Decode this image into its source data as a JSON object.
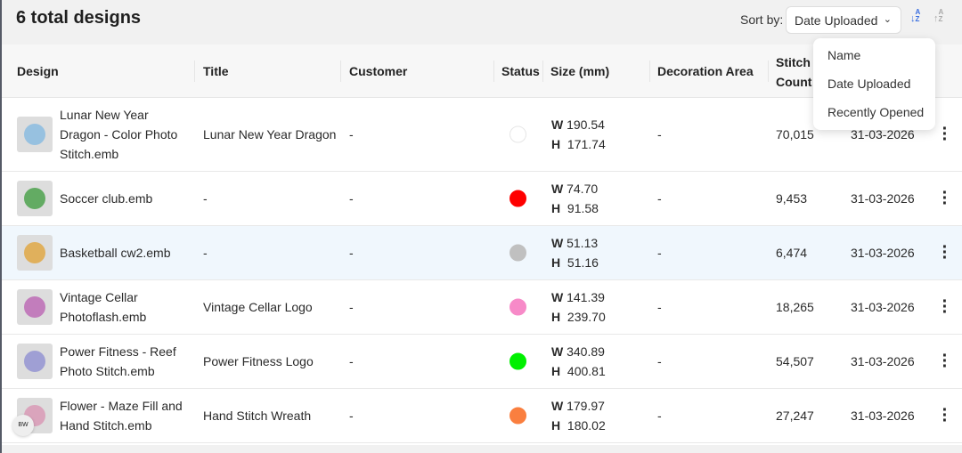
{
  "header": {
    "title": "6 total designs",
    "sort_label": "Sort by:",
    "sort_value": "Date Uploaded",
    "sort_desc_icon": "sort-az-down-icon",
    "sort_asc_icon": "sort-az-up-icon"
  },
  "columns": {
    "design": "Design",
    "title": "Title",
    "customer": "Customer",
    "status": "Status",
    "size": "Size (mm)",
    "decoration": "Decoration Area",
    "stitch": "Stitch Count"
  },
  "sort_options": [
    "Name",
    "Date Uploaded",
    "Recently Opened"
  ],
  "rows": [
    {
      "design": "Lunar New Year Dragon - Color Photo Stitch.emb",
      "title": "Lunar New Year Dragon",
      "customer": "-",
      "status_color": "#ffffff",
      "w": "190.54",
      "h": "171.74",
      "decoration": "-",
      "stitch": "70,015",
      "date": "31-03-2026"
    },
    {
      "design": "Soccer club.emb",
      "title": "-",
      "customer": "-",
      "status_color": "#ff0000",
      "w": "74.70",
      "h": "91.58",
      "decoration": "-",
      "stitch": "9,453",
      "date": "31-03-2026"
    },
    {
      "design": "Basketball cw2.emb",
      "title": "-",
      "customer": "-",
      "status_color": "#c0c0c0",
      "w": "51.13",
      "h": "51.16",
      "decoration": "-",
      "stitch": "6,474",
      "date": "31-03-2026"
    },
    {
      "design": "Vintage Cellar Photoflash.emb",
      "title": "Vintage Cellar Logo",
      "customer": "-",
      "status_color": "#f78ac8",
      "w": "141.39",
      "h": "239.70",
      "decoration": "-",
      "stitch": "18,265",
      "date": "31-03-2026"
    },
    {
      "design": "Power Fitness - Reef Photo Stitch.emb",
      "title": "Power Fitness Logo",
      "customer": "-",
      "status_color": "#00f000",
      "w": "340.89",
      "h": "400.81",
      "decoration": "-",
      "stitch": "54,507",
      "date": "31-03-2026"
    },
    {
      "design": "Flower - Maze Fill and Hand Stitch.emb",
      "title": "Hand Stitch Wreath",
      "customer": "-",
      "status_color": "#fa7f3f",
      "w": "179.97",
      "h": "180.02",
      "decoration": "-",
      "stitch": "27,247",
      "date": "31-03-2026"
    }
  ],
  "size_labels": {
    "w": "W",
    "h": "H"
  },
  "badge": "BW",
  "colors": {
    "accent": "#3b6fe0"
  }
}
